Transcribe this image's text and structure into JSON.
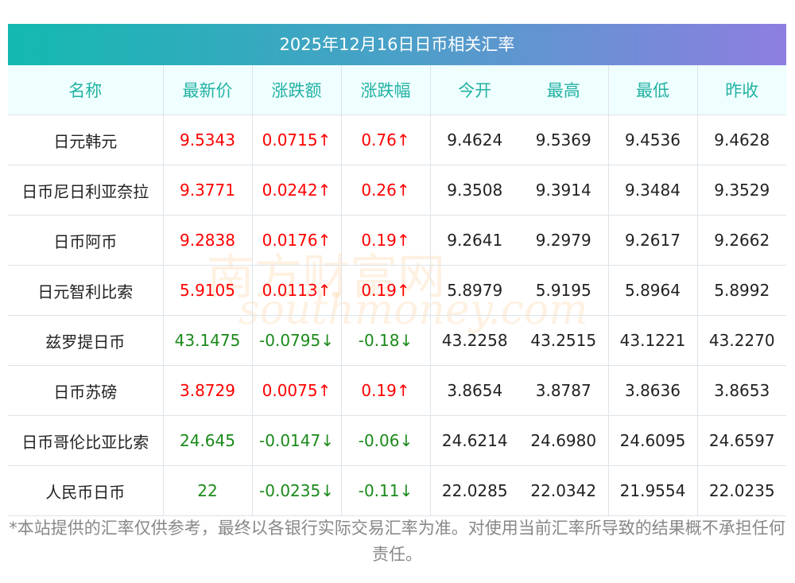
{
  "title": "2025年12月16日日币相关汇率",
  "headers": [
    "名称",
    "最新价",
    "涨跌额",
    "涨跌幅",
    "今开",
    "最高",
    "最低",
    "昨收"
  ],
  "rows": [
    {
      "name": "日元韩元",
      "price": "9.5343",
      "chg": "0.0715↑",
      "pct": "0.76↑",
      "open": "9.4624",
      "high": "9.5369",
      "low": "9.4536",
      "prev": "9.4628",
      "dir": "up"
    },
    {
      "name": "日币尼日利亚奈拉",
      "price": "9.3771",
      "chg": "0.0242↑",
      "pct": "0.26↑",
      "open": "9.3508",
      "high": "9.3914",
      "low": "9.3484",
      "prev": "9.3529",
      "dir": "up"
    },
    {
      "name": "日币阿币",
      "price": "9.2838",
      "chg": "0.0176↑",
      "pct": "0.19↑",
      "open": "9.2641",
      "high": "9.2979",
      "low": "9.2617",
      "prev": "9.2662",
      "dir": "up"
    },
    {
      "name": "日元智利比索",
      "price": "5.9105",
      "chg": "0.0113↑",
      "pct": "0.19↑",
      "open": "5.8979",
      "high": "5.9195",
      "low": "5.8964",
      "prev": "5.8992",
      "dir": "up"
    },
    {
      "name": "兹罗提日币",
      "price": "43.1475",
      "chg": "-0.0795↓",
      "pct": "-0.18↓",
      "open": "43.2258",
      "high": "43.2515",
      "low": "43.1221",
      "prev": "43.2270",
      "dir": "down"
    },
    {
      "name": "日币苏磅",
      "price": "3.8729",
      "chg": "0.0075↑",
      "pct": "0.19↑",
      "open": "3.8654",
      "high": "3.8787",
      "low": "3.8636",
      "prev": "3.8653",
      "dir": "up"
    },
    {
      "name": "日币哥伦比亚比索",
      "price": "24.645",
      "chg": "-0.0147↓",
      "pct": "-0.06↓",
      "open": "24.6214",
      "high": "24.6980",
      "low": "24.6095",
      "prev": "24.6597",
      "dir": "down"
    },
    {
      "name": "人民币日币",
      "price": "22",
      "chg": "-0.0235↓",
      "pct": "-0.11↓",
      "open": "22.0285",
      "high": "22.0342",
      "low": "21.9554",
      "prev": "22.0235",
      "dir": "down"
    }
  ],
  "note": "*本站提供的汇率仅供参考，最终以各银行实际交易汇率为准。对使用当前汇率所导致的结果概不承担任何责任。",
  "watermark": {
    "cn": "南方财富网",
    "en": "southmoney.com"
  }
}
